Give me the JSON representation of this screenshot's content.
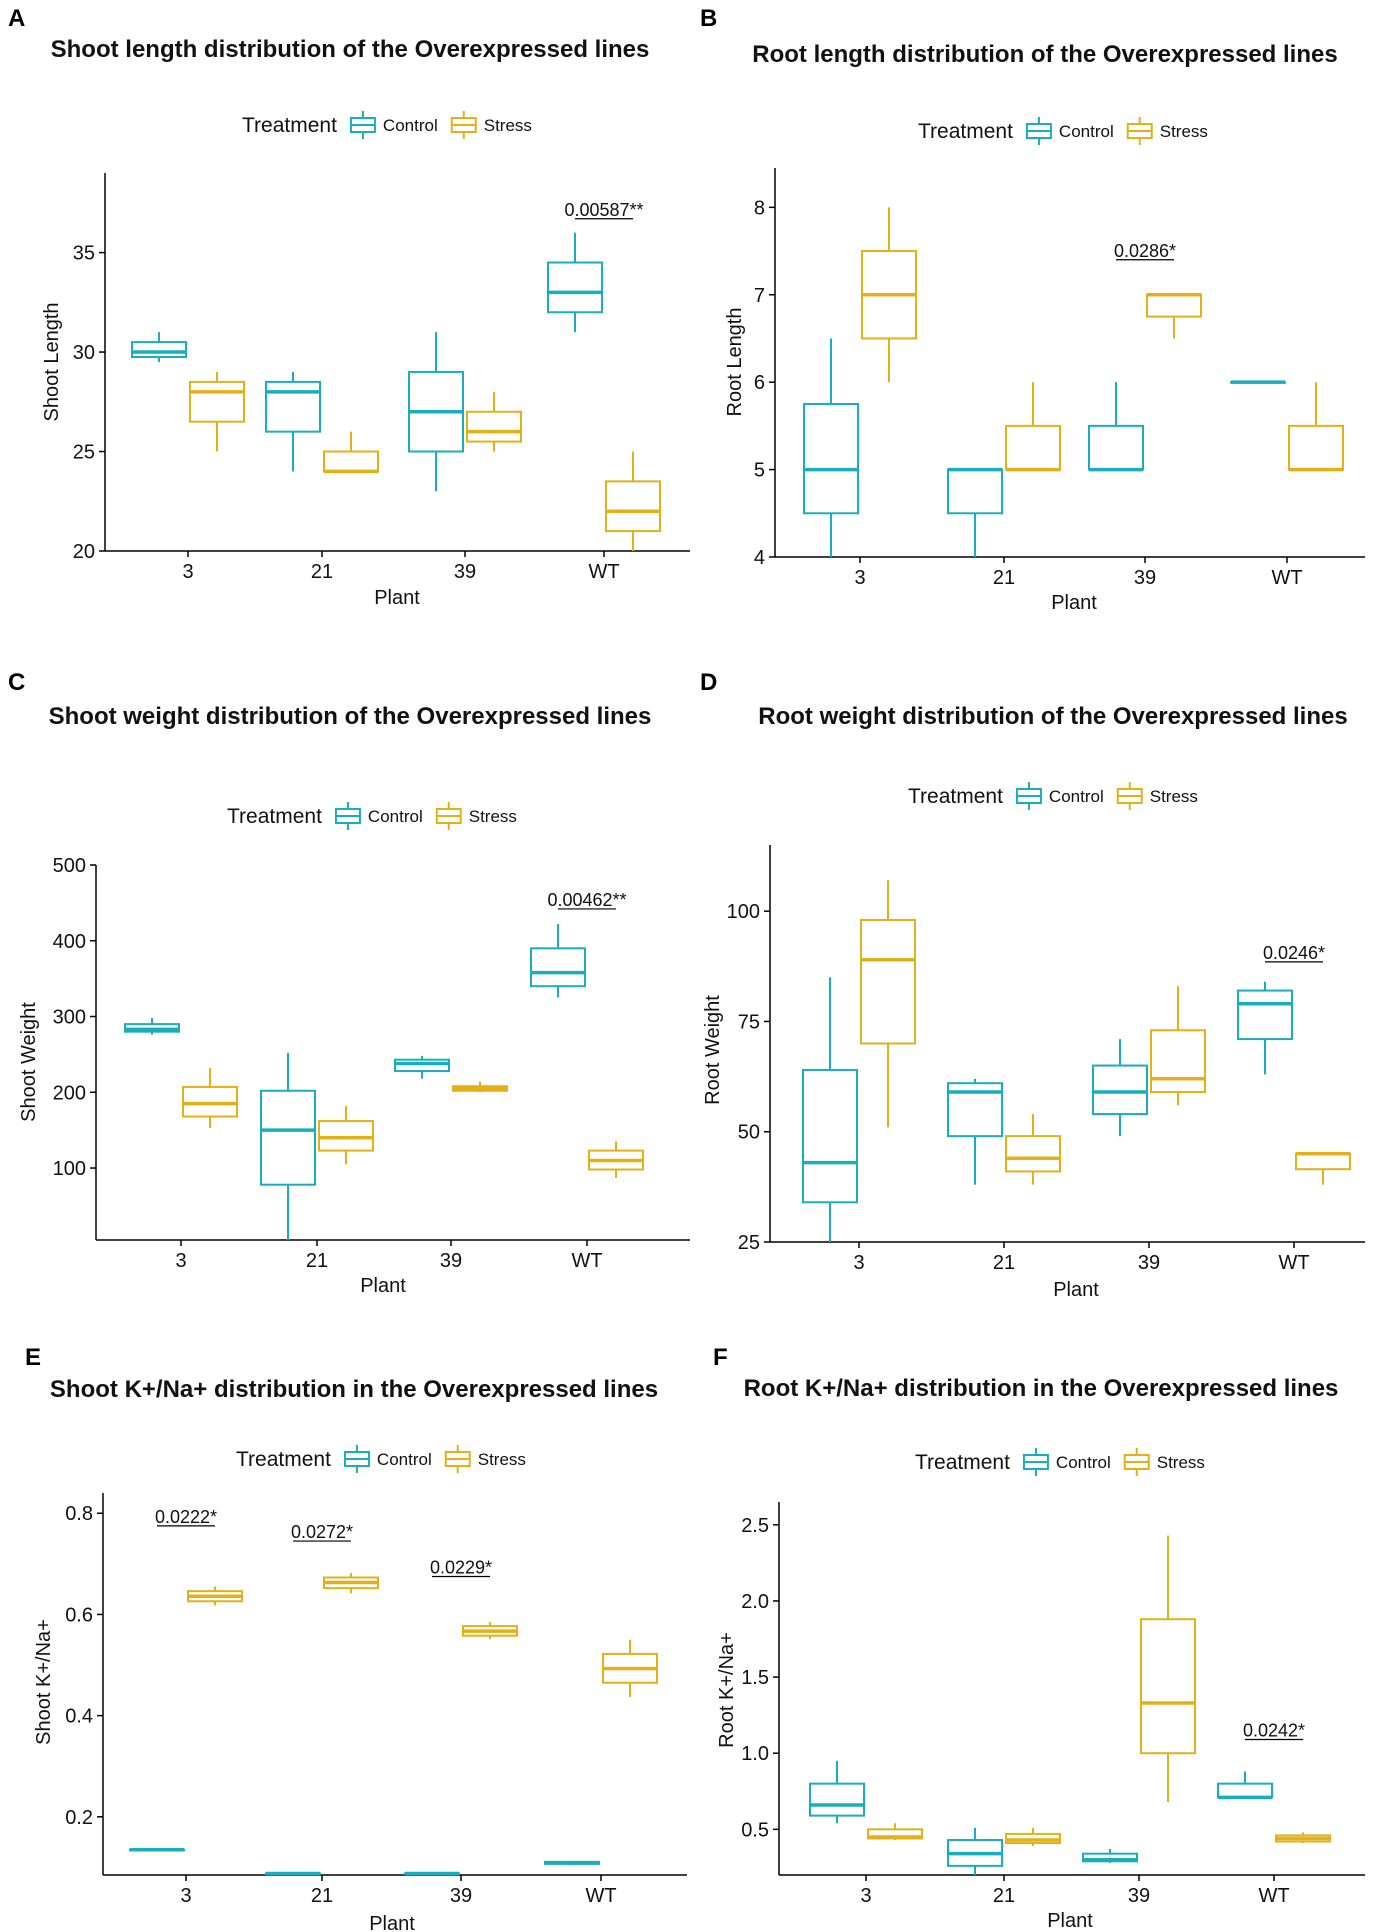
{
  "colors": {
    "Control": "#1aadbd",
    "Stress": "#e3b017"
  },
  "chart_data": [
    {
      "panel": "A",
      "type": "boxplot",
      "title": "Shoot length distribution of the Overexpressed lines",
      "xlabel": "Plant",
      "ylabel": "Shoot Length",
      "legend_title": "Treatment",
      "legend_labels": [
        "Control",
        "Stress"
      ],
      "categories": [
        "3",
        "21",
        "39",
        "WT"
      ],
      "ylim": [
        20,
        39
      ],
      "yticks": [
        20,
        25,
        30,
        35
      ],
      "series": [
        {
          "name": "Control",
          "boxes": [
            {
              "min": 29.5,
              "q1": 29.75,
              "median": 30,
              "q3": 30.5,
              "max": 31
            },
            {
              "min": 24,
              "q1": 26,
              "median": 28,
              "q3": 28.5,
              "max": 29
            },
            {
              "min": 23,
              "q1": 25,
              "median": 27,
              "q3": 29,
              "max": 31
            },
            {
              "min": 31,
              "q1": 32,
              "median": 33,
              "q3": 34.5,
              "max": 36
            }
          ]
        },
        {
          "name": "Stress",
          "boxes": [
            {
              "min": 25,
              "q1": 26.5,
              "median": 28,
              "q3": 28.5,
              "max": 29
            },
            {
              "min": 24,
              "q1": 24,
              "median": 24,
              "q3": 25,
              "max": 26
            },
            {
              "min": 25,
              "q1": 25.5,
              "median": 26,
              "q3": 27,
              "max": 28
            },
            {
              "min": 20,
              "q1": 21,
              "median": 22,
              "q3": 23.5,
              "max": 25
            }
          ]
        }
      ],
      "annotations": [
        {
          "category": "WT",
          "value": "0.00587",
          "suffix": "**",
          "y": 36.7
        }
      ]
    },
    {
      "panel": "B",
      "type": "boxplot",
      "title": "Root length distribution of the Overexpressed lines",
      "xlabel": "Plant",
      "ylabel": "Root Length",
      "legend_title": "Treatment",
      "legend_labels": [
        "Control",
        "Stress"
      ],
      "categories": [
        "3",
        "21",
        "39",
        "WT"
      ],
      "ylim": [
        4,
        8.45
      ],
      "yticks": [
        4,
        5,
        6,
        7,
        8
      ],
      "series": [
        {
          "name": "Control",
          "boxes": [
            {
              "min": 4,
              "q1": 4.5,
              "median": 5,
              "q3": 5.75,
              "max": 6.5
            },
            {
              "min": 4,
              "q1": 4.5,
              "median": 5,
              "q3": 5,
              "max": 5
            },
            {
              "min": 5,
              "q1": 5,
              "median": 5,
              "q3": 5.5,
              "max": 6
            },
            {
              "min": 6,
              "q1": 6,
              "median": 6,
              "q3": 6,
              "max": 6
            }
          ]
        },
        {
          "name": "Stress",
          "boxes": [
            {
              "min": 6,
              "q1": 6.5,
              "median": 7,
              "q3": 7.5,
              "max": 8
            },
            {
              "min": 5,
              "q1": 5,
              "median": 5,
              "q3": 5.5,
              "max": 6
            },
            {
              "min": 6.5,
              "q1": 6.75,
              "median": 7,
              "q3": 7,
              "max": 7
            },
            {
              "min": 5,
              "q1": 5,
              "median": 5,
              "q3": 5.5,
              "max": 6
            }
          ]
        }
      ],
      "annotations": [
        {
          "category": "39",
          "value": "0.0286",
          "suffix": "*",
          "y": 7.4
        }
      ]
    },
    {
      "panel": "C",
      "type": "boxplot",
      "title": "Shoot weight distribution of the Overexpressed lines",
      "xlabel": "Plant",
      "ylabel": "Shoot Weight",
      "legend_title": "Treatment",
      "legend_labels": [
        "Control",
        "Stress"
      ],
      "categories": [
        "3",
        "21",
        "39",
        "WT"
      ],
      "ylim": [
        5,
        500
      ],
      "yticks": [
        100,
        200,
        300,
        400,
        500
      ],
      "series": [
        {
          "name": "Control",
          "boxes": [
            {
              "min": 276,
              "q1": 280,
              "median": 283,
              "q3": 290,
              "max": 298
            },
            {
              "min": 5,
              "q1": 78,
              "median": 150,
              "q3": 202,
              "max": 252
            },
            {
              "min": 218,
              "q1": 228,
              "median": 238,
              "q3": 243,
              "max": 248
            },
            {
              "min": 325,
              "q1": 340,
              "median": 358,
              "q3": 390,
              "max": 422
            }
          ]
        },
        {
          "name": "Stress",
          "boxes": [
            {
              "min": 153,
              "q1": 168,
              "median": 185,
              "q3": 207,
              "max": 232
            },
            {
              "min": 105,
              "q1": 123,
              "median": 140,
              "q3": 162,
              "max": 182
            },
            {
              "min": 200,
              "q1": 202,
              "median": 205,
              "q3": 208,
              "max": 214
            },
            {
              "min": 87,
              "q1": 98,
              "median": 110,
              "q3": 123,
              "max": 135
            }
          ]
        }
      ],
      "annotations": [
        {
          "category": "WT",
          "value": "0.00462",
          "suffix": "**",
          "y": 442
        }
      ]
    },
    {
      "panel": "D",
      "type": "boxplot",
      "title": "Root weight distribution of the Overexpressed lines",
      "xlabel": "Plant",
      "ylabel": "Root Weight",
      "legend_title": "Treatment",
      "legend_labels": [
        "Control",
        "Stress"
      ],
      "categories": [
        "3",
        "21",
        "39",
        "WT"
      ],
      "ylim": [
        25,
        115
      ],
      "yticks": [
        25,
        50,
        75,
        100
      ],
      "series": [
        {
          "name": "Control",
          "boxes": [
            {
              "min": 25,
              "q1": 34,
              "median": 43,
              "q3": 64,
              "max": 85
            },
            {
              "min": 38,
              "q1": 49,
              "median": 59,
              "q3": 61,
              "max": 62
            },
            {
              "min": 49,
              "q1": 54,
              "median": 59,
              "q3": 65,
              "max": 71
            },
            {
              "min": 63,
              "q1": 71,
              "median": 79,
              "q3": 82,
              "max": 84
            }
          ]
        },
        {
          "name": "Stress",
          "boxes": [
            {
              "min": 51,
              "q1": 70,
              "median": 89,
              "q3": 98,
              "max": 107
            },
            {
              "min": 38,
              "q1": 41,
              "median": 44,
              "q3": 49,
              "max": 54
            },
            {
              "min": 56,
              "q1": 59,
              "median": 62,
              "q3": 73,
              "max": 83
            },
            {
              "min": 38,
              "q1": 41.5,
              "median": 45,
              "q3": 45,
              "max": 45
            }
          ]
        }
      ],
      "annotations": [
        {
          "category": "WT",
          "value": "0.0246",
          "suffix": "*",
          "y": 88.5
        }
      ]
    },
    {
      "panel": "E",
      "type": "boxplot",
      "title": "Shoot K+/Na+ distribution in the Overexpressed lines",
      "xlabel": "Plant",
      "ylabel": "Shoot K+/Na+",
      "legend_title": "Treatment",
      "legend_labels": [
        "Control",
        "Stress"
      ],
      "categories": [
        "3",
        "21",
        "39",
        "WT"
      ],
      "ylim": [
        0.085,
        0.84
      ],
      "yticks": [
        0.2,
        0.4,
        0.6,
        0.8
      ],
      "series": [
        {
          "name": "Control",
          "boxes": [
            {
              "min": 0.135,
              "q1": 0.135,
              "median": 0.135,
              "q3": 0.135,
              "max": 0.135
            },
            {
              "min": 0.088,
              "q1": 0.088,
              "median": 0.088,
              "q3": 0.088,
              "max": 0.088
            },
            {
              "min": 0.088,
              "q1": 0.088,
              "median": 0.088,
              "q3": 0.088,
              "max": 0.088
            },
            {
              "min": 0.105,
              "q1": 0.107,
              "median": 0.109,
              "q3": 0.111,
              "max": 0.113
            }
          ]
        },
        {
          "name": "Stress",
          "boxes": [
            {
              "min": 0.618,
              "q1": 0.626,
              "median": 0.636,
              "q3": 0.646,
              "max": 0.655
            },
            {
              "min": 0.642,
              "q1": 0.652,
              "median": 0.663,
              "q3": 0.673,
              "max": 0.682
            },
            {
              "min": 0.551,
              "q1": 0.558,
              "median": 0.567,
              "q3": 0.577,
              "max": 0.585
            },
            {
              "min": 0.437,
              "q1": 0.465,
              "median": 0.493,
              "q3": 0.522,
              "max": 0.55
            }
          ]
        }
      ],
      "annotations": [
        {
          "category": "3",
          "value": "0.0222",
          "suffix": "*",
          "y": 0.775
        },
        {
          "category": "21",
          "value": "0.0272",
          "suffix": "*",
          "y": 0.745
        },
        {
          "category": "39",
          "value": "0.0229",
          "suffix": "*",
          "y": 0.675
        }
      ]
    },
    {
      "panel": "F",
      "type": "boxplot",
      "title": "Root K+/Na+ distribution in the Overexpressed lines",
      "xlabel": "Plant",
      "ylabel": "Root K+/Na+",
      "legend_title": "Treatment",
      "legend_labels": [
        "Control",
        "Stress"
      ],
      "categories": [
        "3",
        "21",
        "39",
        "WT"
      ],
      "ylim": [
        0.2,
        2.65
      ],
      "yticks": [
        0.5,
        1.0,
        1.5,
        2.0,
        2.5
      ],
      "ytick_labels": [
        "0.5",
        "1.0",
        "1.5",
        "2.0",
        "2.5"
      ],
      "series": [
        {
          "name": "Control",
          "boxes": [
            {
              "min": 0.54,
              "q1": 0.59,
              "median": 0.66,
              "q3": 0.8,
              "max": 0.95
            },
            {
              "min": 0.2,
              "q1": 0.26,
              "median": 0.34,
              "q3": 0.43,
              "max": 0.51
            },
            {
              "min": 0.28,
              "q1": 0.29,
              "median": 0.3,
              "q3": 0.34,
              "max": 0.37
            },
            {
              "min": 0.71,
              "q1": 0.71,
              "median": 0.71,
              "q3": 0.8,
              "max": 0.88
            }
          ]
        },
        {
          "name": "Stress",
          "boxes": [
            {
              "min": 0.43,
              "q1": 0.44,
              "median": 0.45,
              "q3": 0.5,
              "max": 0.54
            },
            {
              "min": 0.39,
              "q1": 0.41,
              "median": 0.43,
              "q3": 0.47,
              "max": 0.51
            },
            {
              "min": 0.68,
              "q1": 1.0,
              "median": 1.33,
              "q3": 1.88,
              "max": 2.43
            },
            {
              "min": 0.41,
              "q1": 0.42,
              "median": 0.44,
              "q3": 0.46,
              "max": 0.48
            }
          ]
        }
      ],
      "annotations": [
        {
          "category": "WT",
          "value": "0.0242",
          "suffix": "*",
          "y": 1.09
        }
      ]
    }
  ]
}
